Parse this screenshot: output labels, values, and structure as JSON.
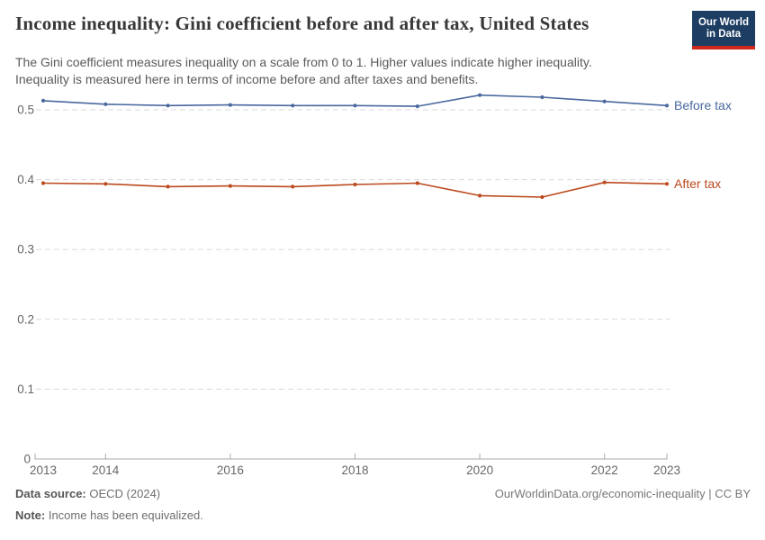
{
  "header": {
    "title": "Income inequality: Gini coefficient before and after tax, United States",
    "subtitle_lines": [
      "The Gini coefficient measures inequality on a scale from 0 to 1. Higher values indicate higher inequality.",
      "Inequality is measured here in terms of income before and after taxes and benefits."
    ],
    "logo": {
      "line1": "Our World",
      "line2": "in Data",
      "navy": "#1d3d63",
      "red": "#d0281c"
    }
  },
  "chart_data": {
    "type": "line",
    "title": "Income inequality: Gini coefficient before and after tax, United States",
    "x": [
      2013,
      2014,
      2015,
      2016,
      2017,
      2018,
      2019,
      2020,
      2021,
      2022,
      2023
    ],
    "series": [
      {
        "name": "Before tax",
        "color": "#4a689e",
        "values": [
          0.513,
          0.508,
          0.506,
          0.507,
          0.506,
          0.506,
          0.505,
          0.521,
          0.518,
          0.512,
          0.506
        ]
      },
      {
        "name": "After tax",
        "color": "#bb491d",
        "values": [
          0.395,
          0.394,
          0.39,
          0.391,
          0.39,
          0.393,
          0.395,
          0.377,
          0.375,
          0.396,
          0.394
        ]
      }
    ],
    "xlabel": "",
    "ylabel": "",
    "ylim": [
      0,
      0.54
    ],
    "yticks": [
      {
        "v": 0.0,
        "label": "0"
      },
      {
        "v": 0.1,
        "label": "0.1"
      },
      {
        "v": 0.2,
        "label": "0.2"
      },
      {
        "v": 0.3,
        "label": "0.3"
      },
      {
        "v": 0.4,
        "label": "0.4"
      },
      {
        "v": 0.5,
        "label": "0.5"
      }
    ],
    "xticks": [
      2013,
      2014,
      2016,
      2018,
      2020,
      2022,
      2023
    ],
    "grid": "horizontal-dashed",
    "legend_position": "end-of-line labels",
    "tick_color": "#666666",
    "grid_color": "#d9d9d9",
    "axis_color": "#a8a8a8"
  },
  "footer": {
    "datasource_label": "Data source:",
    "datasource_value": "OECD (2024)",
    "note_label": "Note:",
    "note_value": "Income has been equivalized.",
    "link": "OurWorldinData.org/economic-inequality | CC BY"
  }
}
